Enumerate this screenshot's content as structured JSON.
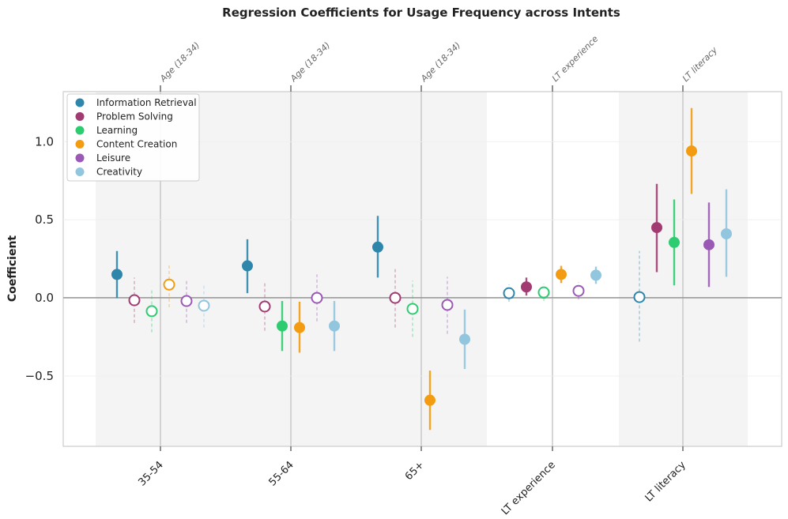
{
  "chart_data": {
    "type": "scatter",
    "title": "Regression Coefficients for Usage Frequency across Intents",
    "xlabel": "",
    "ylabel": "Coefficient",
    "ylim": [
      -0.95,
      1.32
    ],
    "yticks": [
      1.0,
      0.5,
      0.0,
      -0.5
    ],
    "ytick_labels": [
      "1.0",
      "0.5",
      "0.0",
      "−0.5"
    ],
    "categories": [
      "35-54",
      "55-64",
      "65+",
      "LT experience",
      "LT literacy"
    ],
    "top_labels": [
      "Age (18-34)",
      "Age (18-34)",
      "Age (18-34)",
      "LT experience",
      "LT literacy"
    ],
    "grid": false,
    "legend_position": "top-left",
    "series": [
      {
        "name": "Information Retrieval",
        "color": "#2e86ab",
        "values": [
          0.15,
          0.205,
          0.325,
          0.03,
          0.005
        ],
        "ci_low": [
          0.0,
          0.03,
          0.13,
          -0.025,
          -0.28
        ],
        "ci_high": [
          0.3,
          0.375,
          0.525,
          0.085,
          0.3
        ],
        "significant": [
          true,
          true,
          true,
          false,
          false
        ]
      },
      {
        "name": "Problem Solving",
        "color": "#a23b72",
        "values": [
          -0.015,
          -0.055,
          0.0,
          0.07,
          0.45
        ],
        "ci_low": [
          -0.16,
          -0.21,
          -0.19,
          0.015,
          0.165
        ],
        "ci_high": [
          0.13,
          0.105,
          0.185,
          0.13,
          0.73
        ],
        "significant": [
          false,
          false,
          false,
          true,
          true
        ]
      },
      {
        "name": "Learning",
        "color": "#2ecc71",
        "values": [
          -0.085,
          -0.18,
          -0.07,
          0.035,
          0.355
        ],
        "ci_low": [
          -0.22,
          -0.34,
          -0.25,
          -0.02,
          0.08
        ],
        "ci_high": [
          0.05,
          -0.02,
          0.11,
          0.09,
          0.63
        ],
        "significant": [
          false,
          true,
          false,
          false,
          true
        ]
      },
      {
        "name": "Content Creation",
        "color": "#f39c12",
        "values": [
          0.085,
          -0.19,
          -0.655,
          0.15,
          0.94
        ],
        "ci_low": [
          -0.06,
          -0.35,
          -0.845,
          0.095,
          0.665
        ],
        "ci_high": [
          0.22,
          -0.025,
          -0.465,
          0.205,
          1.215
        ],
        "significant": [
          false,
          true,
          true,
          true,
          true
        ]
      },
      {
        "name": "Leisure",
        "color": "#9b59b6",
        "values": [
          -0.02,
          0.0,
          -0.045,
          0.045,
          0.34
        ],
        "ci_low": [
          -0.16,
          -0.15,
          -0.23,
          -0.01,
          0.07
        ],
        "ci_high": [
          0.115,
          0.15,
          0.135,
          0.1,
          0.61
        ],
        "significant": [
          false,
          false,
          false,
          false,
          true
        ]
      },
      {
        "name": "Creativity",
        "color": "#92c5de",
        "values": [
          -0.05,
          -0.18,
          -0.265,
          0.145,
          0.41
        ],
        "ci_low": [
          -0.19,
          -0.34,
          -0.455,
          0.09,
          0.135
        ],
        "ci_high": [
          0.085,
          -0.02,
          -0.075,
          0.2,
          0.695
        ],
        "significant": [
          false,
          true,
          true,
          true,
          true
        ]
      }
    ]
  }
}
